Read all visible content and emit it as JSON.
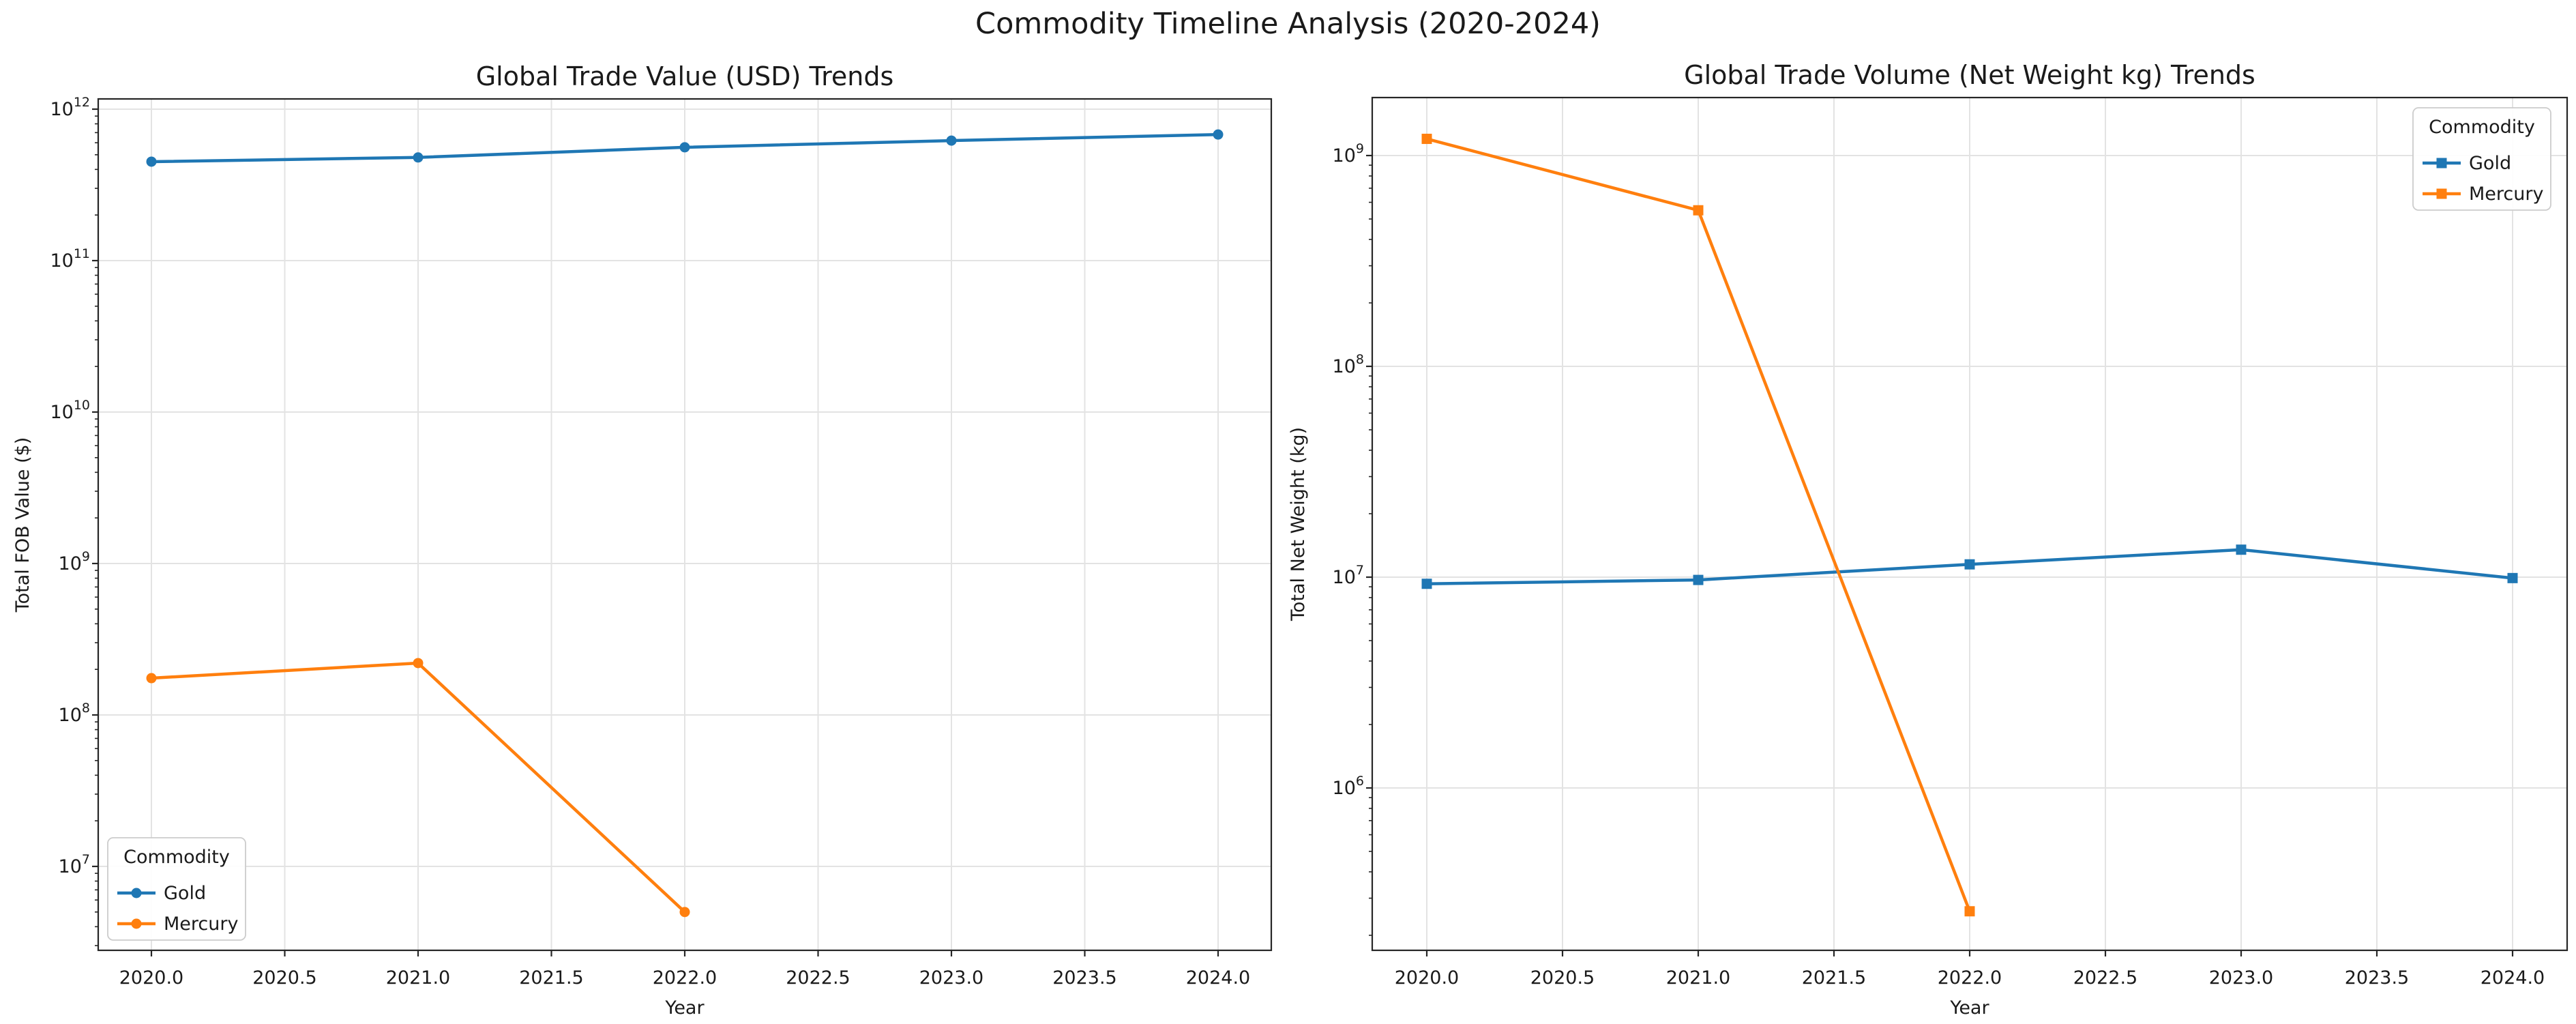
{
  "figure": {
    "suptitle": "Commodity Timeline Analysis (2020-2024)",
    "background": "#ffffff",
    "text_color": "#1a1a1a"
  },
  "colors": {
    "gold": "#1f77b4",
    "mercury": "#ff7f0e",
    "grid": "#e3e3e3",
    "spine": "#262626",
    "legend_border": "#cccccc"
  },
  "chart_data": [
    {
      "type": "line",
      "title": "Global Trade Value (USD) Trends",
      "xlabel": "Year",
      "ylabel": "Total FOB Value ($)",
      "x_ticks": [
        2020.0,
        2020.5,
        2021.0,
        2021.5,
        2022.0,
        2022.5,
        2023.0,
        2023.5,
        2024.0
      ],
      "x_tick_labels": [
        "2020.0",
        "2020.5",
        "2021.0",
        "2021.5",
        "2022.0",
        "2022.5",
        "2023.0",
        "2023.5",
        "2024.0"
      ],
      "xlim": [
        2019.8,
        2024.2
      ],
      "y_scale": "log",
      "y_ticks_exponents": [
        7,
        8,
        9,
        10,
        11,
        12
      ],
      "ylim_log10": [
        6.446,
        12.068
      ],
      "grid": true,
      "marker": "circle",
      "legend": {
        "title": "Commodity",
        "position": "lower left",
        "entries": [
          "Gold",
          "Mercury"
        ]
      },
      "series": [
        {
          "name": "Gold",
          "color": "#1f77b4",
          "x": [
            2020,
            2021,
            2022,
            2023,
            2024
          ],
          "y": [
            450000000000.0,
            480000000000.0,
            560000000000.0,
            620000000000.0,
            680000000000.0
          ]
        },
        {
          "name": "Mercury",
          "color": "#ff7f0e",
          "x": [
            2020,
            2021,
            2022
          ],
          "y": [
            175000000.0,
            220000000.0,
            5000000.0
          ]
        }
      ]
    },
    {
      "type": "line",
      "title": "Global Trade Volume (Net Weight kg) Trends",
      "xlabel": "Year",
      "ylabel": "Total Net Weight (kg)",
      "x_ticks": [
        2020.0,
        2020.5,
        2021.0,
        2021.5,
        2022.0,
        2022.5,
        2023.0,
        2023.5,
        2024.0
      ],
      "x_tick_labels": [
        "2020.0",
        "2020.5",
        "2021.0",
        "2021.5",
        "2022.0",
        "2022.5",
        "2023.0",
        "2023.5",
        "2024.0"
      ],
      "xlim": [
        2019.8,
        2024.2
      ],
      "y_scale": "log",
      "y_ticks_exponents": [
        6,
        7,
        8,
        9
      ],
      "ylim_log10": [
        5.229,
        9.275
      ],
      "grid": true,
      "marker": "square",
      "legend": {
        "title": "Commodity",
        "position": "upper right",
        "entries": [
          "Gold",
          "Mercury"
        ]
      },
      "series": [
        {
          "name": "Gold",
          "color": "#1f77b4",
          "x": [
            2020,
            2021,
            2022,
            2023,
            2024
          ],
          "y": [
            9300000.0,
            9700000.0,
            11500000.0,
            13500000.0,
            9900000.0
          ]
        },
        {
          "name": "Mercury",
          "color": "#ff7f0e",
          "x": [
            2020,
            2021,
            2022
          ],
          "y": [
            1200000000.0,
            550000000.0,
            260000.0
          ]
        }
      ]
    }
  ]
}
